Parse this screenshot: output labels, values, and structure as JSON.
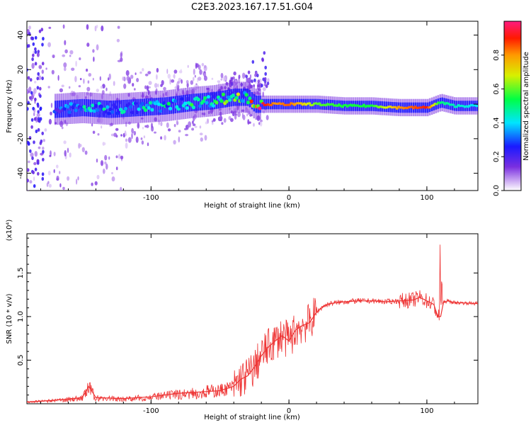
{
  "title": "C2E3.2023.167.17.51.G04",
  "chart_data": [
    {
      "type": "heatmap",
      "xlabel": "Height of straight line (km)",
      "ylabel": "Frequency (Hz)",
      "xlim": [
        -190,
        137
      ],
      "ylim": [
        -50,
        48
      ],
      "xticks": [
        -100,
        0,
        100
      ],
      "yticks": [
        -40,
        -20,
        0,
        20,
        40
      ],
      "ridge": {
        "x": [
          -170,
          -150,
          -130,
          -110,
          -90,
          -70,
          -55,
          -40,
          -30,
          -25,
          -20,
          -10,
          0,
          20,
          40,
          60,
          80,
          100,
          110,
          120,
          137
        ],
        "freq": [
          -3,
          -2,
          -3,
          -2,
          -1,
          1,
          2,
          4,
          4,
          0,
          0,
          0,
          0,
          0,
          -1,
          -1,
          -2,
          -2,
          1,
          -1,
          -1
        ],
        "amplitude": [
          0.25,
          0.35,
          0.38,
          0.35,
          0.4,
          0.42,
          0.45,
          0.5,
          0.55,
          0.85,
          0.95,
          0.8,
          0.85,
          0.6,
          0.55,
          0.55,
          0.8,
          0.9,
          0.5,
          0.45,
          0.4
        ]
      },
      "colorbar": {
        "label": "Normalized spectral amplitude",
        "ticks": [
          0.0,
          0.2,
          0.4,
          0.6,
          0.8
        ]
      }
    },
    {
      "type": "line",
      "xlabel": "Height of straight line (km)",
      "ylabel": "SNR (10 * v/v)",
      "yunit": "(x10⁴)",
      "xlim": [
        -190,
        137
      ],
      "ylim": [
        0,
        1.95
      ],
      "xticks": [
        -100,
        0,
        100
      ],
      "yticks": [
        0.5,
        1.0,
        1.5
      ],
      "ytick_labels": [
        "0.5",
        "1.0",
        "1.5"
      ],
      "series": [
        {
          "color": "#ee3333",
          "x": [
            -190,
            -170,
            -150,
            -145,
            -140,
            -120,
            -100,
            -80,
            -60,
            -50,
            -40,
            -35,
            -30,
            -25,
            -20,
            -15,
            -10,
            -5,
            0,
            5,
            10,
            15,
            20,
            25,
            30,
            40,
            50,
            60,
            70,
            80,
            90,
            95,
            100,
            105,
            108,
            110,
            112,
            115,
            120,
            137
          ],
          "y": [
            0.02,
            0.04,
            0.07,
            0.2,
            0.07,
            0.06,
            0.08,
            0.12,
            0.14,
            0.15,
            0.2,
            0.28,
            0.32,
            0.42,
            0.55,
            0.65,
            0.72,
            0.78,
            0.72,
            0.85,
            0.9,
            0.93,
            1.05,
            1.12,
            1.15,
            1.17,
            1.18,
            1.18,
            1.17,
            1.18,
            1.19,
            1.22,
            1.18,
            1.14,
            1.0,
            1.0,
            1.16,
            1.18,
            1.16,
            1.15
          ]
        }
      ]
    }
  ]
}
